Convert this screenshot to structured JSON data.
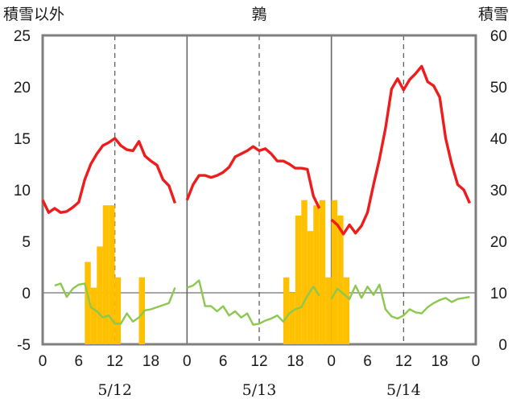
{
  "chart_data": {
    "type": "line",
    "title": "鶉",
    "left_axis_label": "積雪以外",
    "right_axis_label": "積雪",
    "left_ylim": [
      -5,
      25
    ],
    "left_yticks": [
      "25",
      "20",
      "15",
      "10",
      "5",
      "0",
      "-5"
    ],
    "right_ylim": [
      0,
      60
    ],
    "right_yticks": [
      "60",
      "50",
      "40",
      "30",
      "20",
      "10",
      "0"
    ],
    "xticks": [
      "0",
      "6",
      "12",
      "18",
      "0",
      "6",
      "12",
      "18",
      "0",
      "6",
      "12",
      "18",
      "0"
    ],
    "dates": [
      "5/12",
      "5/13",
      "5/14"
    ],
    "x_range_hours": [
      0,
      72
    ],
    "grid": "vertical dashed at 12h, solid day separators",
    "colors": {
      "temp_red": "#ee1c1c",
      "temp_green": "#8cc850",
      "bars": "#ffc000",
      "frame": "#7f7f7f"
    },
    "series": [
      {
        "axis": "left",
        "color": "#ee1c1c",
        "x": [
          0,
          1,
          2,
          3,
          4,
          5,
          6,
          7,
          8,
          9,
          10,
          11,
          12,
          13,
          14,
          15,
          16,
          17,
          18,
          19,
          20,
          21,
          22,
          24,
          25,
          26,
          27,
          28,
          29,
          30,
          31,
          32,
          33,
          34,
          35,
          36,
          37,
          38,
          39,
          40,
          41,
          42,
          43,
          44,
          45,
          46,
          48,
          49,
          50,
          51,
          52,
          53,
          54,
          55,
          56,
          57,
          58,
          59,
          60,
          61,
          62,
          63,
          64,
          65,
          66,
          67,
          68,
          69,
          70,
          71
        ],
        "values": [
          9.0,
          7.8,
          8.2,
          7.8,
          7.9,
          8.3,
          8.8,
          11.0,
          12.5,
          13.5,
          14.3,
          14.6,
          15.0,
          14.3,
          13.9,
          13.8,
          14.7,
          13.3,
          12.8,
          12.4,
          11.0,
          10.4,
          8.7,
          9.0,
          10.5,
          11.4,
          11.4,
          11.2,
          11.4,
          11.7,
          12.2,
          13.2,
          13.5,
          13.8,
          14.2,
          13.8,
          14.0,
          13.5,
          12.8,
          12.8,
          12.5,
          12.1,
          12.1,
          12.0,
          9.4,
          8.2,
          7.1,
          6.6,
          5.7,
          6.6,
          5.8,
          6.5,
          7.8,
          10.5,
          13.0,
          16.0,
          19.8,
          20.8,
          19.7,
          20.7,
          21.3,
          22.0,
          20.5,
          20.1,
          19.0,
          15.0,
          12.5,
          10.5,
          10.0,
          8.7
        ]
      },
      {
        "axis": "left",
        "color": "#8cc850",
        "x": [
          2,
          3,
          4,
          5,
          6,
          7,
          8,
          9,
          10,
          11,
          12,
          13,
          14,
          15,
          16,
          17,
          18,
          19,
          20,
          21,
          22,
          24,
          25,
          26,
          27,
          28,
          29,
          30,
          31,
          32,
          33,
          34,
          35,
          36,
          37,
          38,
          39,
          40,
          41,
          42,
          43,
          44,
          45,
          46,
          48,
          49,
          50,
          51,
          52,
          53,
          54,
          55,
          56,
          57,
          58,
          59,
          60,
          61,
          62,
          63,
          64,
          65,
          66,
          67,
          68,
          69,
          70,
          71
        ],
        "values": [
          0.7,
          0.9,
          -0.4,
          0.4,
          0.8,
          0.9,
          -1.4,
          -1.8,
          -2.4,
          -2.2,
          -3.0,
          -3.0,
          -2.0,
          -2.8,
          -2.4,
          -1.7,
          -1.6,
          -1.4,
          -1.2,
          -1.0,
          0.5,
          0.5,
          0.7,
          1.2,
          -1.3,
          -1.3,
          -1.8,
          -1.3,
          -2.2,
          -1.8,
          -2.4,
          -2.0,
          -3.1,
          -3.0,
          -2.7,
          -2.5,
          -2.2,
          -2.8,
          -2.0,
          -1.6,
          -1.4,
          -0.3,
          0.6,
          -0.3,
          -0.6,
          0.4,
          -0.1,
          -0.6,
          0.7,
          -0.5,
          0.6,
          -0.2,
          0.8,
          -1.6,
          -2.3,
          -2.5,
          -2.2,
          -1.6,
          -1.9,
          -2.0,
          -1.4,
          -1.0,
          -0.7,
          -0.5,
          -0.9,
          -0.6,
          -0.5,
          -0.4
        ]
      },
      {
        "axis": "right",
        "type": "bar",
        "color": "#ffc000",
        "bars": [
          [
            7.5,
            16
          ],
          [
            8.5,
            11
          ],
          [
            9.5,
            19
          ],
          [
            10.5,
            27
          ],
          [
            11.5,
            27
          ],
          [
            12.5,
            13
          ],
          [
            16.5,
            13
          ],
          [
            40.5,
            13
          ],
          [
            41.5,
            10
          ],
          [
            42.5,
            25
          ],
          [
            43.5,
            28
          ],
          [
            44.5,
            22
          ],
          [
            45.5,
            27
          ],
          [
            46.5,
            28
          ],
          [
            47.5,
            13
          ],
          [
            48.5,
            28
          ],
          [
            49.5,
            25
          ],
          [
            50.5,
            13
          ]
        ]
      }
    ]
  }
}
